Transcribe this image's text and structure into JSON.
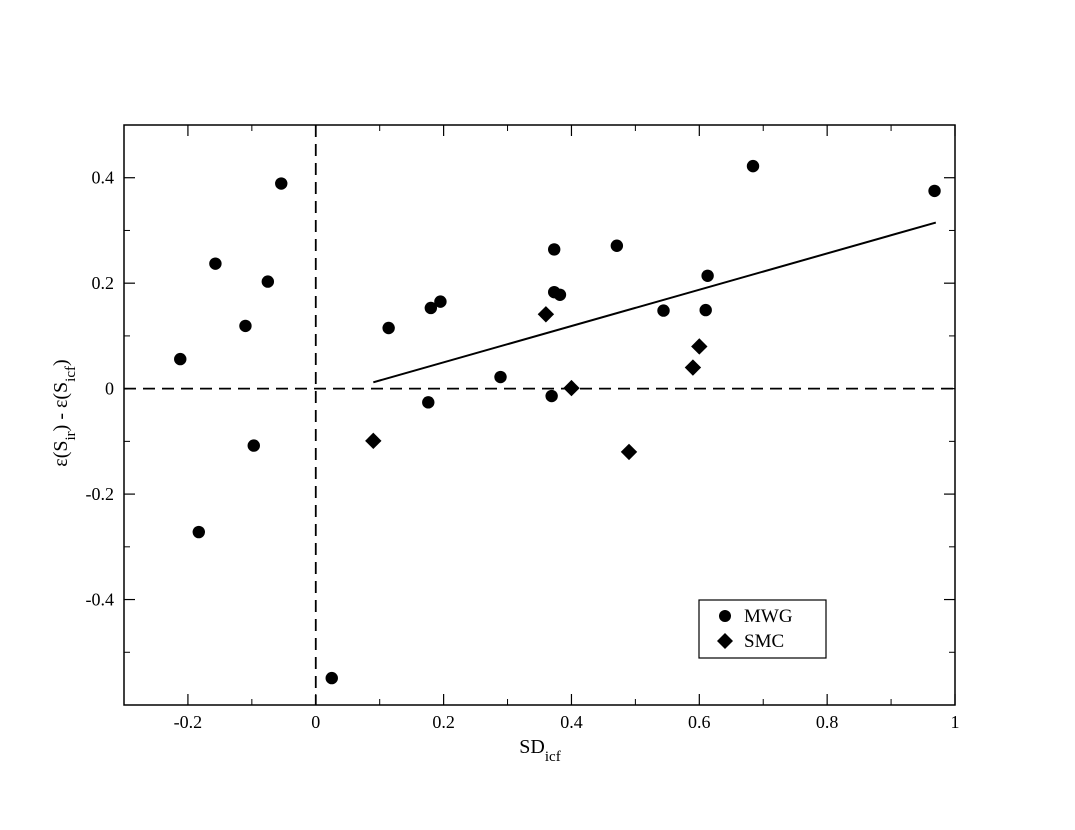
{
  "chart_data": {
    "type": "scatter",
    "xlabel": {
      "base": "SD",
      "sub": "icf"
    },
    "ylabel": {
      "parts": [
        {
          "t": "ε(S",
          "sub": false
        },
        {
          "t": "ir",
          "sub": true
        },
        {
          "t": ") - ε(S",
          "sub": false
        },
        {
          "t": "icf",
          "sub": true
        },
        {
          "t": ")",
          "sub": false
        }
      ]
    },
    "xlim": [
      -0.3,
      1.0
    ],
    "ylim": [
      -0.6,
      0.5
    ],
    "xticks": [
      {
        "v": -0.2,
        "label": "-0.2"
      },
      {
        "v": 0,
        "label": "0"
      },
      {
        "v": 0.2,
        "label": "0.2"
      },
      {
        "v": 0.4,
        "label": "0.4"
      },
      {
        "v": 0.6,
        "label": "0.6"
      },
      {
        "v": 0.8,
        "label": "0.8"
      },
      {
        "v": 1.0,
        "label": "1"
      }
    ],
    "xminor": [
      -0.3,
      -0.1,
      0.1,
      0.3,
      0.5,
      0.7,
      0.9
    ],
    "yticks": [
      {
        "v": 0.4,
        "label": "0.4"
      },
      {
        "v": 0.2,
        "label": "0.2"
      },
      {
        "v": 0,
        "label": "0"
      },
      {
        "v": -0.2,
        "label": "-0.2"
      },
      {
        "v": -0.4,
        "label": "-0.4"
      }
    ],
    "yminor": [
      0.3,
      0.1,
      -0.1,
      -0.3,
      -0.5
    ],
    "grid": false,
    "reference_lines": {
      "x": 0,
      "y": 0,
      "style": "dashed"
    },
    "fit_line": {
      "x": [
        0.09,
        0.97
      ],
      "y": [
        0.012,
        0.315
      ]
    },
    "legend_position": "bottom-right",
    "series": [
      {
        "name": "MWG",
        "marker": "circle",
        "x": [
          -0.212,
          -0.183,
          -0.157,
          -0.11,
          -0.097,
          -0.075,
          -0.054,
          0.025,
          0.114,
          0.176,
          0.18,
          0.195,
          0.289,
          0.369,
          0.373,
          0.373,
          0.382,
          0.471,
          0.544,
          0.61,
          0.613,
          0.684,
          0.968
        ],
        "y": [
          0.056,
          -0.272,
          0.237,
          0.119,
          -0.108,
          0.203,
          0.389,
          -0.549,
          0.115,
          -0.026,
          0.153,
          0.165,
          0.022,
          -0.014,
          0.264,
          0.183,
          0.178,
          0.271,
          0.148,
          0.149,
          0.214,
          0.422,
          0.375
        ]
      },
      {
        "name": "SMC",
        "marker": "diamond",
        "x": [
          0.09,
          0.36,
          0.4,
          0.49,
          0.59,
          0.6
        ],
        "y": [
          -0.099,
          0.141,
          0.001,
          -0.12,
          0.04,
          0.08
        ]
      }
    ],
    "colors": {
      "marks": "#000000",
      "background": "#ffffff"
    }
  }
}
